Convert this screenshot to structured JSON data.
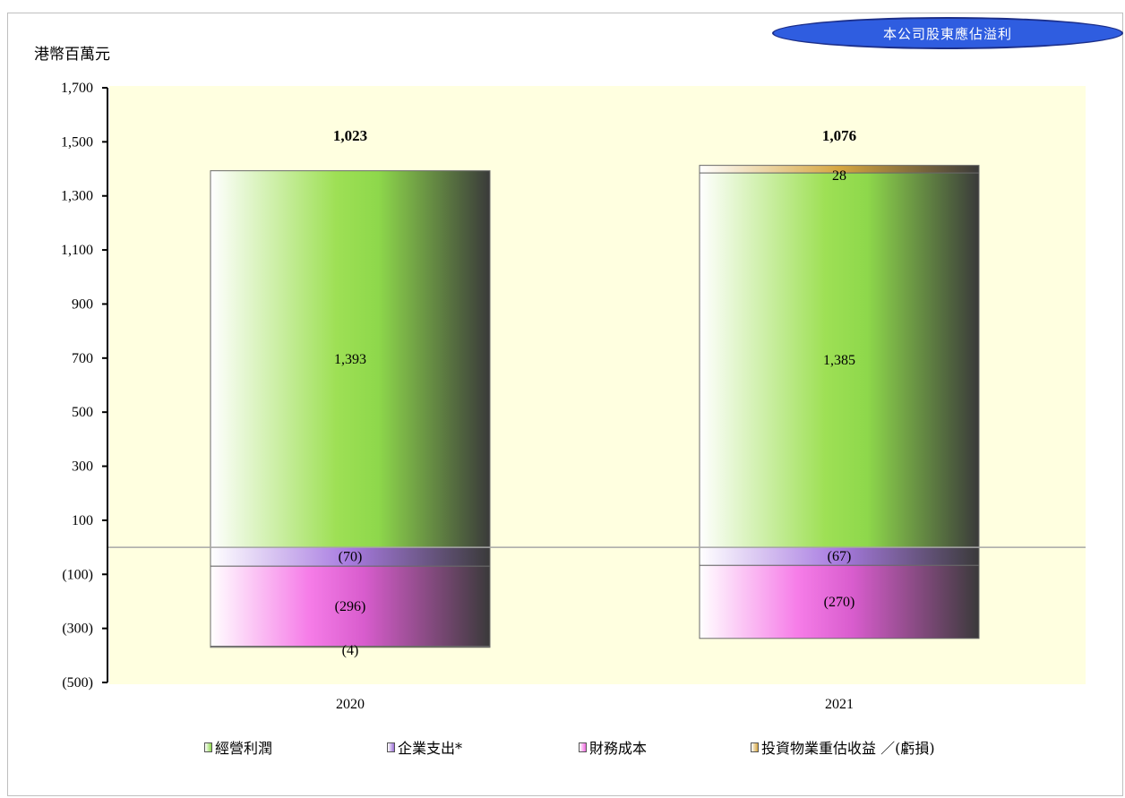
{
  "badge": "本公司股東應佔溢利",
  "colors": {
    "operating": "#8ed84b",
    "corporate": "#9b6fd6",
    "finance": "#f06ae0",
    "revaluation": "#d6a640",
    "plot_bg": "#ffffe0"
  },
  "chart_data": {
    "type": "bar",
    "stacked": true,
    "ylabel": "港幣百萬元",
    "ylim": [
      -500,
      1700
    ],
    "yticks": [
      1700,
      1500,
      1300,
      1100,
      900,
      700,
      500,
      300,
      100,
      -100,
      -300,
      -500
    ],
    "ytick_labels": [
      "1,700",
      "1,500",
      "1,300",
      "1,100",
      "900",
      "700",
      "500",
      "300",
      "100",
      "(100)",
      "(300)",
      "(500)"
    ],
    "categories": [
      "2020",
      "2021"
    ],
    "totals": [
      1023,
      1076
    ],
    "total_labels": [
      "1,023",
      "1,076"
    ],
    "series": [
      {
        "name": "經營利潤",
        "values": [
          1393,
          1385
        ],
        "labels": [
          "1,393",
          "1,385"
        ]
      },
      {
        "name": "企業支出*",
        "values": [
          -70,
          -67
        ],
        "labels": [
          "(70)",
          "(67)"
        ]
      },
      {
        "name": "財務成本",
        "values": [
          -296,
          -270
        ],
        "labels": [
          "(296)",
          "(270)"
        ]
      },
      {
        "name": "投資物業重估收益 ／(虧損)",
        "values": [
          -4,
          28
        ],
        "labels": [
          "(4)",
          "28"
        ]
      }
    ],
    "legend_position": "bottom",
    "grid": false
  }
}
